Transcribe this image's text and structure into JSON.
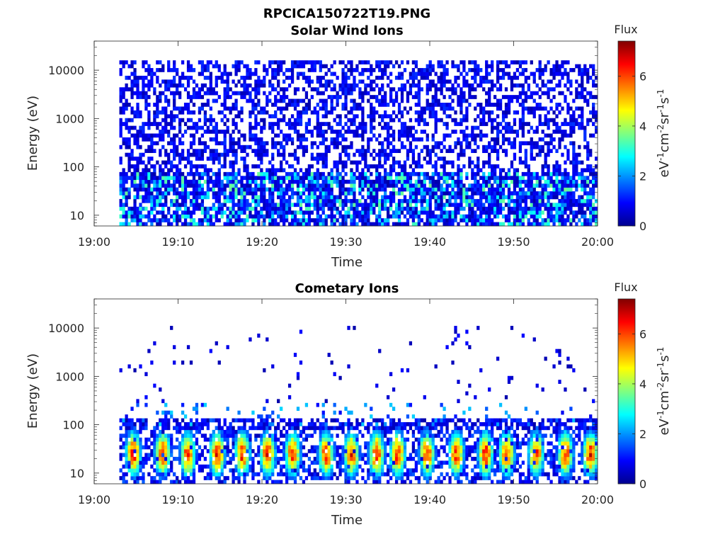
{
  "figure_title": "RPCICA150722T19.PNG",
  "chart_data": [
    {
      "type": "heatmap",
      "title": "Solar Wind Ions",
      "xlabel": "Time",
      "ylabel": "Energy (eV)",
      "y_scale": "log",
      "xlim": [
        "19:00",
        "20:00"
      ],
      "ylim": [
        6,
        40000
      ],
      "x_ticks": [
        "19:00",
        "19:10",
        "19:20",
        "19:30",
        "19:40",
        "19:50",
        "20:00"
      ],
      "y_ticks": [
        "10",
        "100",
        "1000",
        "10000"
      ],
      "data_start": "19:03",
      "colorbar": {
        "title": "Flux",
        "label": "eV-1cm-2sr-1s-1",
        "ticks": [
          "0",
          "2",
          "4",
          "6"
        ],
        "range": [
          0,
          7.4
        ],
        "colormap": "jet"
      },
      "bands": [
        {
          "emin": 6,
          "emax": 15000,
          "fill": 0.5,
          "vmin": 0.3,
          "vmax": 1.3
        },
        {
          "emin": 15,
          "emax": 80,
          "fill": 0.62,
          "vmin": 1.2,
          "vmax": 3.6
        },
        {
          "emin": 6,
          "emax": 15,
          "fill": 0.55,
          "vmin": 1.5,
          "vmax": 3.4
        }
      ]
    },
    {
      "type": "heatmap",
      "title": "Cometary Ions",
      "xlabel": "Time",
      "ylabel": "Energy (eV)",
      "y_scale": "log",
      "xlim": [
        "19:00",
        "20:00"
      ],
      "ylim": [
        6,
        40000
      ],
      "x_ticks": [
        "19:00",
        "19:10",
        "19:20",
        "19:30",
        "19:40",
        "19:50",
        "20:00"
      ],
      "y_ticks": [
        "10",
        "100",
        "1000",
        "10000"
      ],
      "data_start": "19:03",
      "colorbar": {
        "title": "Flux",
        "label": "eV-1cm-2sr-1s-1",
        "ticks": [
          "0",
          "2",
          "4",
          "6"
        ],
        "range": [
          0,
          7.4
        ],
        "colormap": "jet"
      },
      "bands": [
        {
          "emin": 300,
          "emax": 12000,
          "fill": 0.025,
          "vmin": 0.3,
          "vmax": 1.0
        },
        {
          "emin": 100,
          "emax": 300,
          "fill": 0.1,
          "vmin": 0.8,
          "vmax": 2.5
        },
        {
          "emin": 80,
          "emax": 130,
          "fill": 0.6,
          "vmin": 0.3,
          "vmax": 1.3
        },
        {
          "emin": 6,
          "emax": 100,
          "fill": 0.45,
          "vmin": 0.4,
          "vmax": 1.6
        }
      ],
      "bursts": {
        "times_min": [
          4.5,
          8,
          11,
          14.5,
          17.5,
          20.5,
          23.5,
          27.5,
          30.5,
          33.5,
          36,
          39.5,
          43,
          46.5,
          49,
          52.5,
          56,
          59
        ],
        "peak_energy_ev": 25,
        "peak_flux": 6.5
      }
    }
  ]
}
